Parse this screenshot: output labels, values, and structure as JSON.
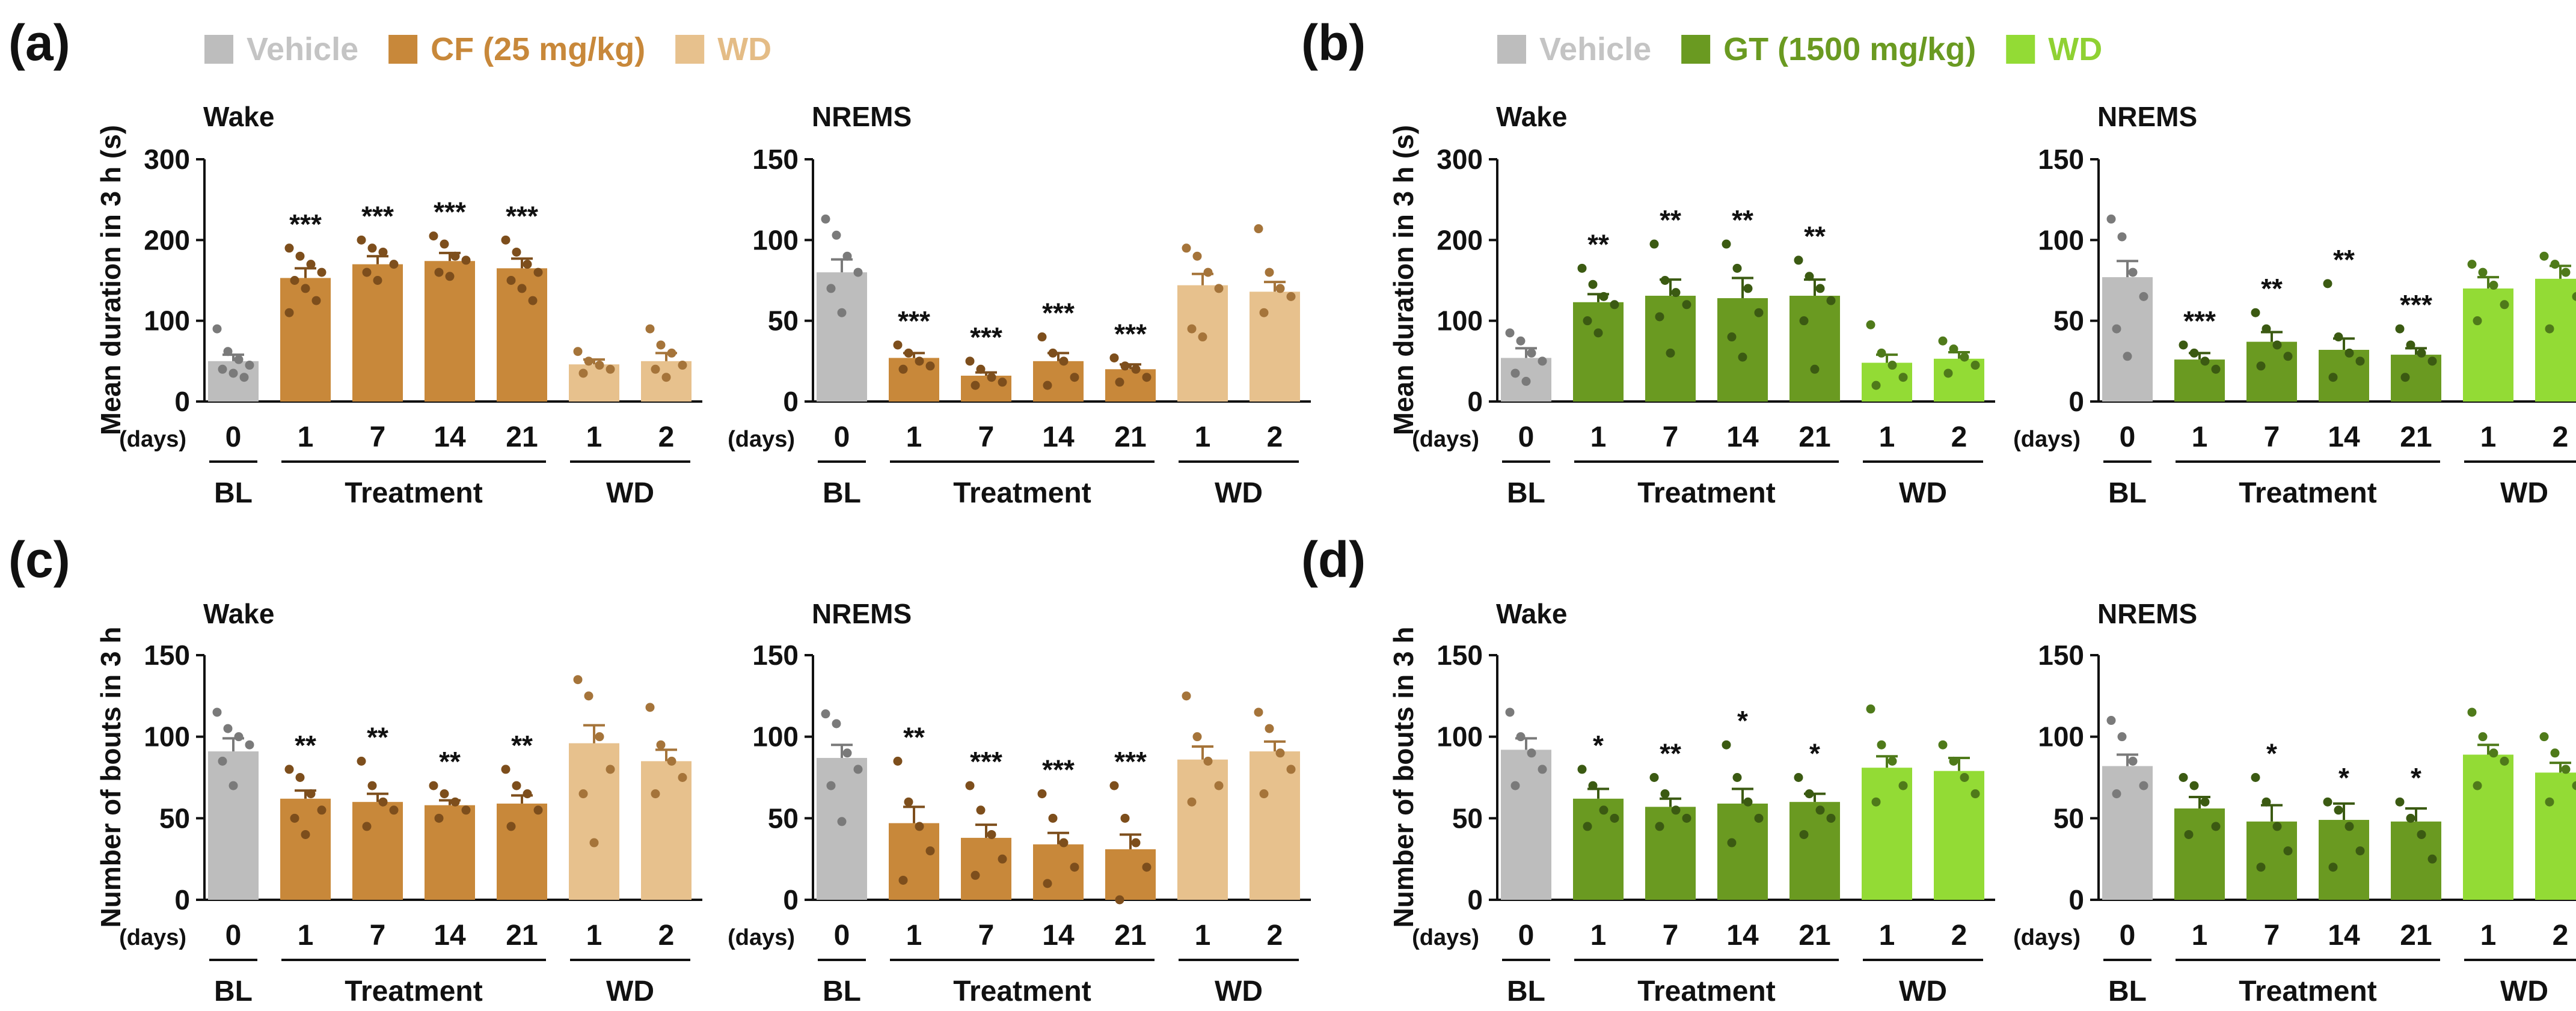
{
  "figure": {
    "legends": [
      {
        "panel_label": "(a)",
        "items": [
          {
            "label": "Vehicle",
            "color": "#bdbdbd",
            "text_color": "#c4c4c4"
          },
          {
            "label": "CF (25 mg/kg)",
            "color": "#c8883a",
            "text_color": "#c8883a"
          },
          {
            "label": "WD",
            "color": "#e7c18d",
            "text_color": "#e4bc86"
          }
        ]
      },
      {
        "panel_label": "(b)",
        "items": [
          {
            "label": "Vehicle",
            "color": "#bdbdbd",
            "text_color": "#c4c4c4"
          },
          {
            "label": "GT (1500 mg/kg)",
            "color": "#6a9a21",
            "text_color": "#6a9a21"
          },
          {
            "label": "WD",
            "color": "#93db35",
            "text_color": "#8fd133"
          }
        ]
      }
    ],
    "row_labels": [
      "(c)",
      "(d)"
    ],
    "ylabels": {
      "duration": "Mean duration in 3 h (s)",
      "bouts": "Number of bouts in 3 h"
    },
    "x_axis": {
      "days_label": "(days)",
      "days": [
        "0",
        "1",
        "7",
        "14",
        "21",
        "1",
        "2"
      ],
      "groups": [
        {
          "label": "BL"
        },
        {
          "label": "Treatment"
        },
        {
          "label": "WD"
        }
      ]
    }
  },
  "chart_data": [
    {
      "id": "a-wake",
      "type": "bar",
      "title": "Wake",
      "ylim": [
        0,
        300
      ],
      "yticks": [
        0,
        100,
        200,
        300
      ],
      "ylabel": "Mean duration in 3 h (s)",
      "scheme": "cf",
      "categories": [
        "0",
        "1",
        "7",
        "14",
        "21",
        "1",
        "2"
      ],
      "values": [
        50,
        153,
        170,
        174,
        165,
        46,
        50
      ],
      "errors": [
        8,
        12,
        10,
        10,
        12,
        6,
        10
      ],
      "points": [
        [
          90,
          62,
          52,
          45,
          40,
          35,
          30
        ],
        [
          190,
          180,
          170,
          160,
          150,
          140,
          125,
          110
        ],
        [
          200,
          190,
          185,
          170,
          160,
          150
        ],
        [
          205,
          195,
          180,
          175,
          160,
          155
        ],
        [
          200,
          185,
          170,
          160,
          150,
          140,
          125
        ],
        [
          62,
          50,
          45,
          40,
          35
        ],
        [
          90,
          70,
          60,
          45,
          40,
          30
        ]
      ],
      "significance": [
        "",
        "***",
        "***",
        "***",
        "***",
        "",
        ""
      ]
    },
    {
      "id": "a-nrems",
      "type": "bar",
      "title": "NREMS",
      "ylim": [
        0,
        150
      ],
      "yticks": [
        0,
        50,
        100,
        150
      ],
      "scheme": "cf",
      "categories": [
        "0",
        "1",
        "7",
        "14",
        "21",
        "1",
        "2"
      ],
      "values": [
        80,
        27,
        16,
        25,
        20,
        72,
        68
      ],
      "errors": [
        8,
        3,
        2,
        5,
        3,
        7,
        6
      ],
      "points": [
        [
          113,
          103,
          90,
          80,
          70,
          55
        ],
        [
          35,
          30,
          25,
          22,
          20
        ],
        [
          25,
          20,
          15,
          12,
          10
        ],
        [
          40,
          30,
          25,
          15,
          10
        ],
        [
          27,
          22,
          20,
          15,
          12
        ],
        [
          95,
          90,
          80,
          70,
          45,
          40
        ],
        [
          107,
          80,
          70,
          65,
          55
        ]
      ],
      "significance": [
        "",
        "***",
        "***",
        "***",
        "***",
        "",
        ""
      ]
    },
    {
      "id": "b-wake",
      "type": "bar",
      "title": "Wake",
      "ylim": [
        0,
        300
      ],
      "yticks": [
        0,
        100,
        200,
        300
      ],
      "ylabel": "Mean duration in 3 h (s)",
      "scheme": "gt",
      "categories": [
        "0",
        "1",
        "7",
        "14",
        "21",
        "1",
        "2"
      ],
      "values": [
        54,
        123,
        131,
        128,
        131,
        48,
        53
      ],
      "errors": [
        12,
        10,
        20,
        25,
        20,
        10,
        8
      ],
      "points": [
        [
          85,
          75,
          60,
          50,
          35,
          25
        ],
        [
          165,
          145,
          130,
          120,
          100,
          85
        ],
        [
          195,
          150,
          135,
          120,
          105,
          60
        ],
        [
          195,
          165,
          140,
          110,
          80,
          55
        ],
        [
          175,
          155,
          140,
          125,
          100,
          40
        ],
        [
          95,
          60,
          45,
          30,
          20
        ],
        [
          75,
          65,
          55,
          45,
          35
        ]
      ],
      "significance": [
        "",
        "**",
        "**",
        "**",
        "**",
        "",
        ""
      ]
    },
    {
      "id": "b-nrems",
      "type": "bar",
      "title": "NREMS",
      "ylim": [
        0,
        150
      ],
      "yticks": [
        0,
        50,
        100,
        150
      ],
      "scheme": "gt",
      "categories": [
        "0",
        "1",
        "7",
        "14",
        "21",
        "1",
        "2"
      ],
      "values": [
        77,
        26,
        37,
        32,
        29,
        70,
        76
      ],
      "errors": [
        10,
        4,
        6,
        7,
        4,
        7,
        8
      ],
      "points": [
        [
          113,
          102,
          80,
          65,
          45,
          28
        ],
        [
          35,
          30,
          25,
          20
        ],
        [
          55,
          45,
          35,
          28,
          22
        ],
        [
          73,
          40,
          30,
          25,
          15
        ],
        [
          45,
          35,
          30,
          25,
          15
        ],
        [
          85,
          80,
          72,
          60,
          50
        ],
        [
          90,
          85,
          80,
          65,
          45
        ]
      ],
      "significance": [
        "",
        "***",
        "**",
        "**",
        "***",
        "",
        ""
      ]
    },
    {
      "id": "c-wake",
      "type": "bar",
      "title": "Wake",
      "ylim": [
        0,
        150
      ],
      "yticks": [
        0,
        50,
        100,
        150
      ],
      "ylabel": "Number of bouts in 3 h",
      "scheme": "cf",
      "categories": [
        "0",
        "1",
        "7",
        "14",
        "21",
        "1",
        "2"
      ],
      "values": [
        91,
        62,
        60,
        58,
        59,
        96,
        85
      ],
      "errors": [
        8,
        5,
        5,
        3,
        5,
        11,
        7
      ],
      "points": [
        [
          115,
          105,
          100,
          95,
          85,
          70
        ],
        [
          80,
          75,
          65,
          55,
          50,
          40
        ],
        [
          85,
          70,
          60,
          55,
          45
        ],
        [
          70,
          65,
          60,
          55,
          50
        ],
        [
          80,
          70,
          65,
          55,
          45
        ],
        [
          135,
          125,
          100,
          80,
          65,
          35
        ],
        [
          118,
          95,
          85,
          75,
          65
        ]
      ],
      "significance": [
        "",
        "**",
        "**",
        "**",
        "**",
        "",
        ""
      ]
    },
    {
      "id": "c-nrems",
      "type": "bar",
      "title": "NREMS",
      "ylim": [
        0,
        150
      ],
      "yticks": [
        0,
        50,
        100,
        150
      ],
      "scheme": "cf",
      "categories": [
        "0",
        "1",
        "7",
        "14",
        "21",
        "1",
        "2"
      ],
      "values": [
        87,
        47,
        38,
        34,
        31,
        86,
        91
      ],
      "errors": [
        8,
        10,
        8,
        7,
        9,
        8,
        6
      ],
      "points": [
        [
          114,
          108,
          90,
          80,
          70,
          48
        ],
        [
          85,
          60,
          45,
          30,
          12
        ],
        [
          70,
          55,
          40,
          25,
          15
        ],
        [
          65,
          50,
          35,
          20,
          10
        ],
        [
          70,
          50,
          35,
          20,
          0
        ],
        [
          125,
          100,
          85,
          70,
          60
        ],
        [
          115,
          105,
          90,
          80,
          65
        ]
      ],
      "significance": [
        "",
        "**",
        "***",
        "***",
        "***",
        "",
        ""
      ]
    },
    {
      "id": "d-wake",
      "type": "bar",
      "title": "Wake",
      "ylim": [
        0,
        150
      ],
      "yticks": [
        0,
        50,
        100,
        150
      ],
      "ylabel": "Number of bouts in 3 h",
      "scheme": "gt",
      "categories": [
        "0",
        "1",
        "7",
        "14",
        "21",
        "1",
        "2"
      ],
      "values": [
        92,
        62,
        57,
        59,
        60,
        81,
        79
      ],
      "errors": [
        7,
        6,
        5,
        9,
        5,
        7,
        8
      ],
      "points": [
        [
          115,
          100,
          90,
          80,
          70
        ],
        [
          80,
          70,
          55,
          50,
          45
        ],
        [
          75,
          65,
          55,
          50,
          45
        ],
        [
          95,
          75,
          60,
          50,
          35
        ],
        [
          75,
          65,
          55,
          50,
          40
        ],
        [
          117,
          95,
          85,
          70,
          60
        ],
        [
          95,
          85,
          75,
          65
        ]
      ],
      "significance": [
        "",
        "*",
        "**",
        "*",
        "*",
        "",
        ""
      ]
    },
    {
      "id": "d-nrems",
      "type": "bar",
      "title": "NREMS",
      "ylim": [
        0,
        150
      ],
      "yticks": [
        0,
        50,
        100,
        150
      ],
      "scheme": "gt",
      "categories": [
        "0",
        "1",
        "7",
        "14",
        "21",
        "1",
        "2"
      ],
      "values": [
        82,
        56,
        48,
        49,
        48,
        89,
        78
      ],
      "errors": [
        7,
        7,
        10,
        10,
        8,
        6,
        6
      ],
      "points": [
        [
          110,
          100,
          85,
          70,
          65
        ],
        [
          75,
          70,
          60,
          45,
          40
        ],
        [
          75,
          60,
          45,
          30,
          20
        ],
        [
          60,
          55,
          45,
          30,
          20
        ],
        [
          60,
          50,
          40,
          25
        ],
        [
          115,
          100,
          90,
          85,
          70
        ],
        [
          100,
          90,
          80,
          70,
          60
        ]
      ],
      "significance": [
        "",
        "",
        "*",
        "*",
        "*",
        "",
        ""
      ]
    }
  ]
}
